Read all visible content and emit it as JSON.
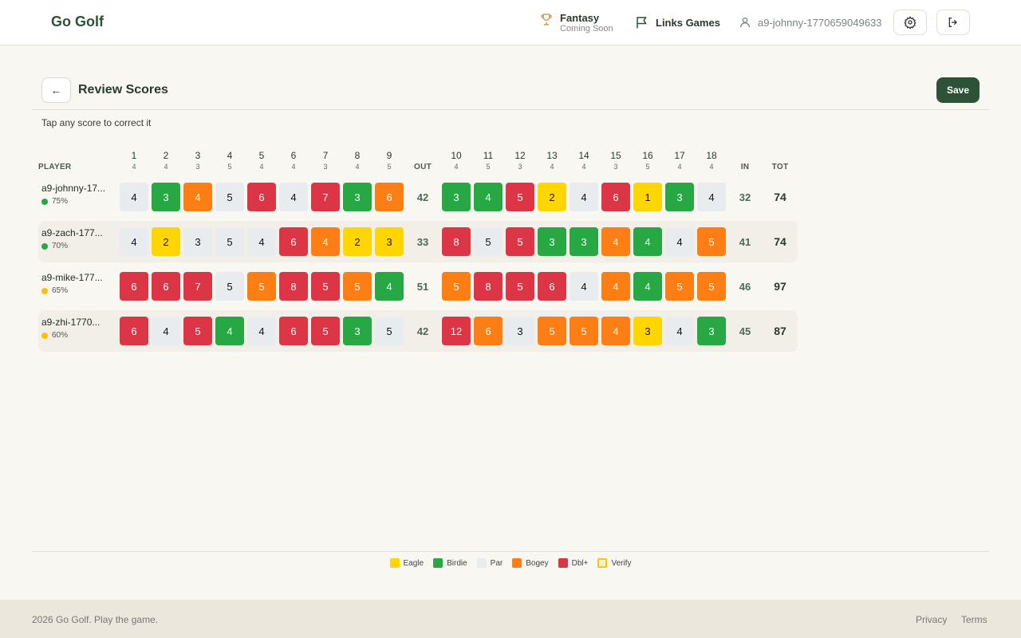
{
  "header": {
    "logo": "Go Golf",
    "fantasy": "Fantasy",
    "fantasy_sub": "Coming Soon",
    "links_games": "Links Games",
    "username": "a9-johnny-1770659049633"
  },
  "page": {
    "title": "Review Scores",
    "save_label": "Save",
    "hint": "Tap any score to correct it"
  },
  "table": {
    "player_label": "PLAYER",
    "out_label": "OUT",
    "in_label": "IN",
    "tot_label": "TOT",
    "holes": [
      1,
      2,
      3,
      4,
      5,
      6,
      7,
      8,
      9,
      10,
      11,
      12,
      13,
      14,
      15,
      16,
      17,
      18
    ],
    "pars": [
      4,
      4,
      3,
      5,
      4,
      4,
      3,
      4,
      5,
      4,
      5,
      3,
      4,
      4,
      3,
      5,
      4,
      4
    ],
    "players": [
      {
        "name": "a9-johnny-17...",
        "pct": "75%",
        "dot": "#28a745",
        "scores": [
          4,
          3,
          4,
          5,
          6,
          4,
          7,
          3,
          6,
          3,
          4,
          5,
          2,
          4,
          6,
          1,
          3,
          4
        ],
        "out": 42,
        "in": 32,
        "tot": 74
      },
      {
        "name": "a9-zach-177...",
        "pct": "70%",
        "dot": "#28a745",
        "scores": [
          4,
          2,
          3,
          5,
          4,
          6,
          4,
          2,
          3,
          8,
          5,
          5,
          3,
          3,
          4,
          4,
          4,
          5
        ],
        "out": 33,
        "in": 41,
        "tot": 74
      },
      {
        "name": "a9-mike-177...",
        "pct": "65%",
        "dot": "#ffc107",
        "scores": [
          6,
          6,
          7,
          5,
          5,
          8,
          5,
          5,
          4,
          5,
          8,
          5,
          6,
          4,
          4,
          4,
          5,
          5
        ],
        "out": 51,
        "in": 46,
        "tot": 97
      },
      {
        "name": "a9-zhi-1770...",
        "pct": "60%",
        "dot": "#ffc107",
        "scores": [
          6,
          4,
          5,
          4,
          4,
          6,
          5,
          3,
          5,
          12,
          6,
          3,
          5,
          5,
          4,
          3,
          4,
          3
        ],
        "out": 42,
        "in": 45,
        "tot": 87
      }
    ]
  },
  "colors": {
    "eagle": "#ffd600",
    "birdie": "#28a745",
    "par": "#e9ecef",
    "bogey": "#fd7e14",
    "dbl": "#dc3545"
  },
  "legend": [
    {
      "label": "Eagle",
      "color": "#ffd600"
    },
    {
      "label": "Birdie",
      "color": "#28a745"
    },
    {
      "label": "Par",
      "color": "#e9ecef"
    },
    {
      "label": "Bogey",
      "color": "#fd7e14"
    },
    {
      "label": "Dbl+",
      "color": "#dc3545"
    },
    {
      "label": "Verify",
      "color": "#fff3cd",
      "border": "#ffc107"
    }
  ],
  "footer": {
    "copyright": "2026 Go Golf. Play the game.",
    "privacy": "Privacy",
    "terms": "Terms"
  }
}
